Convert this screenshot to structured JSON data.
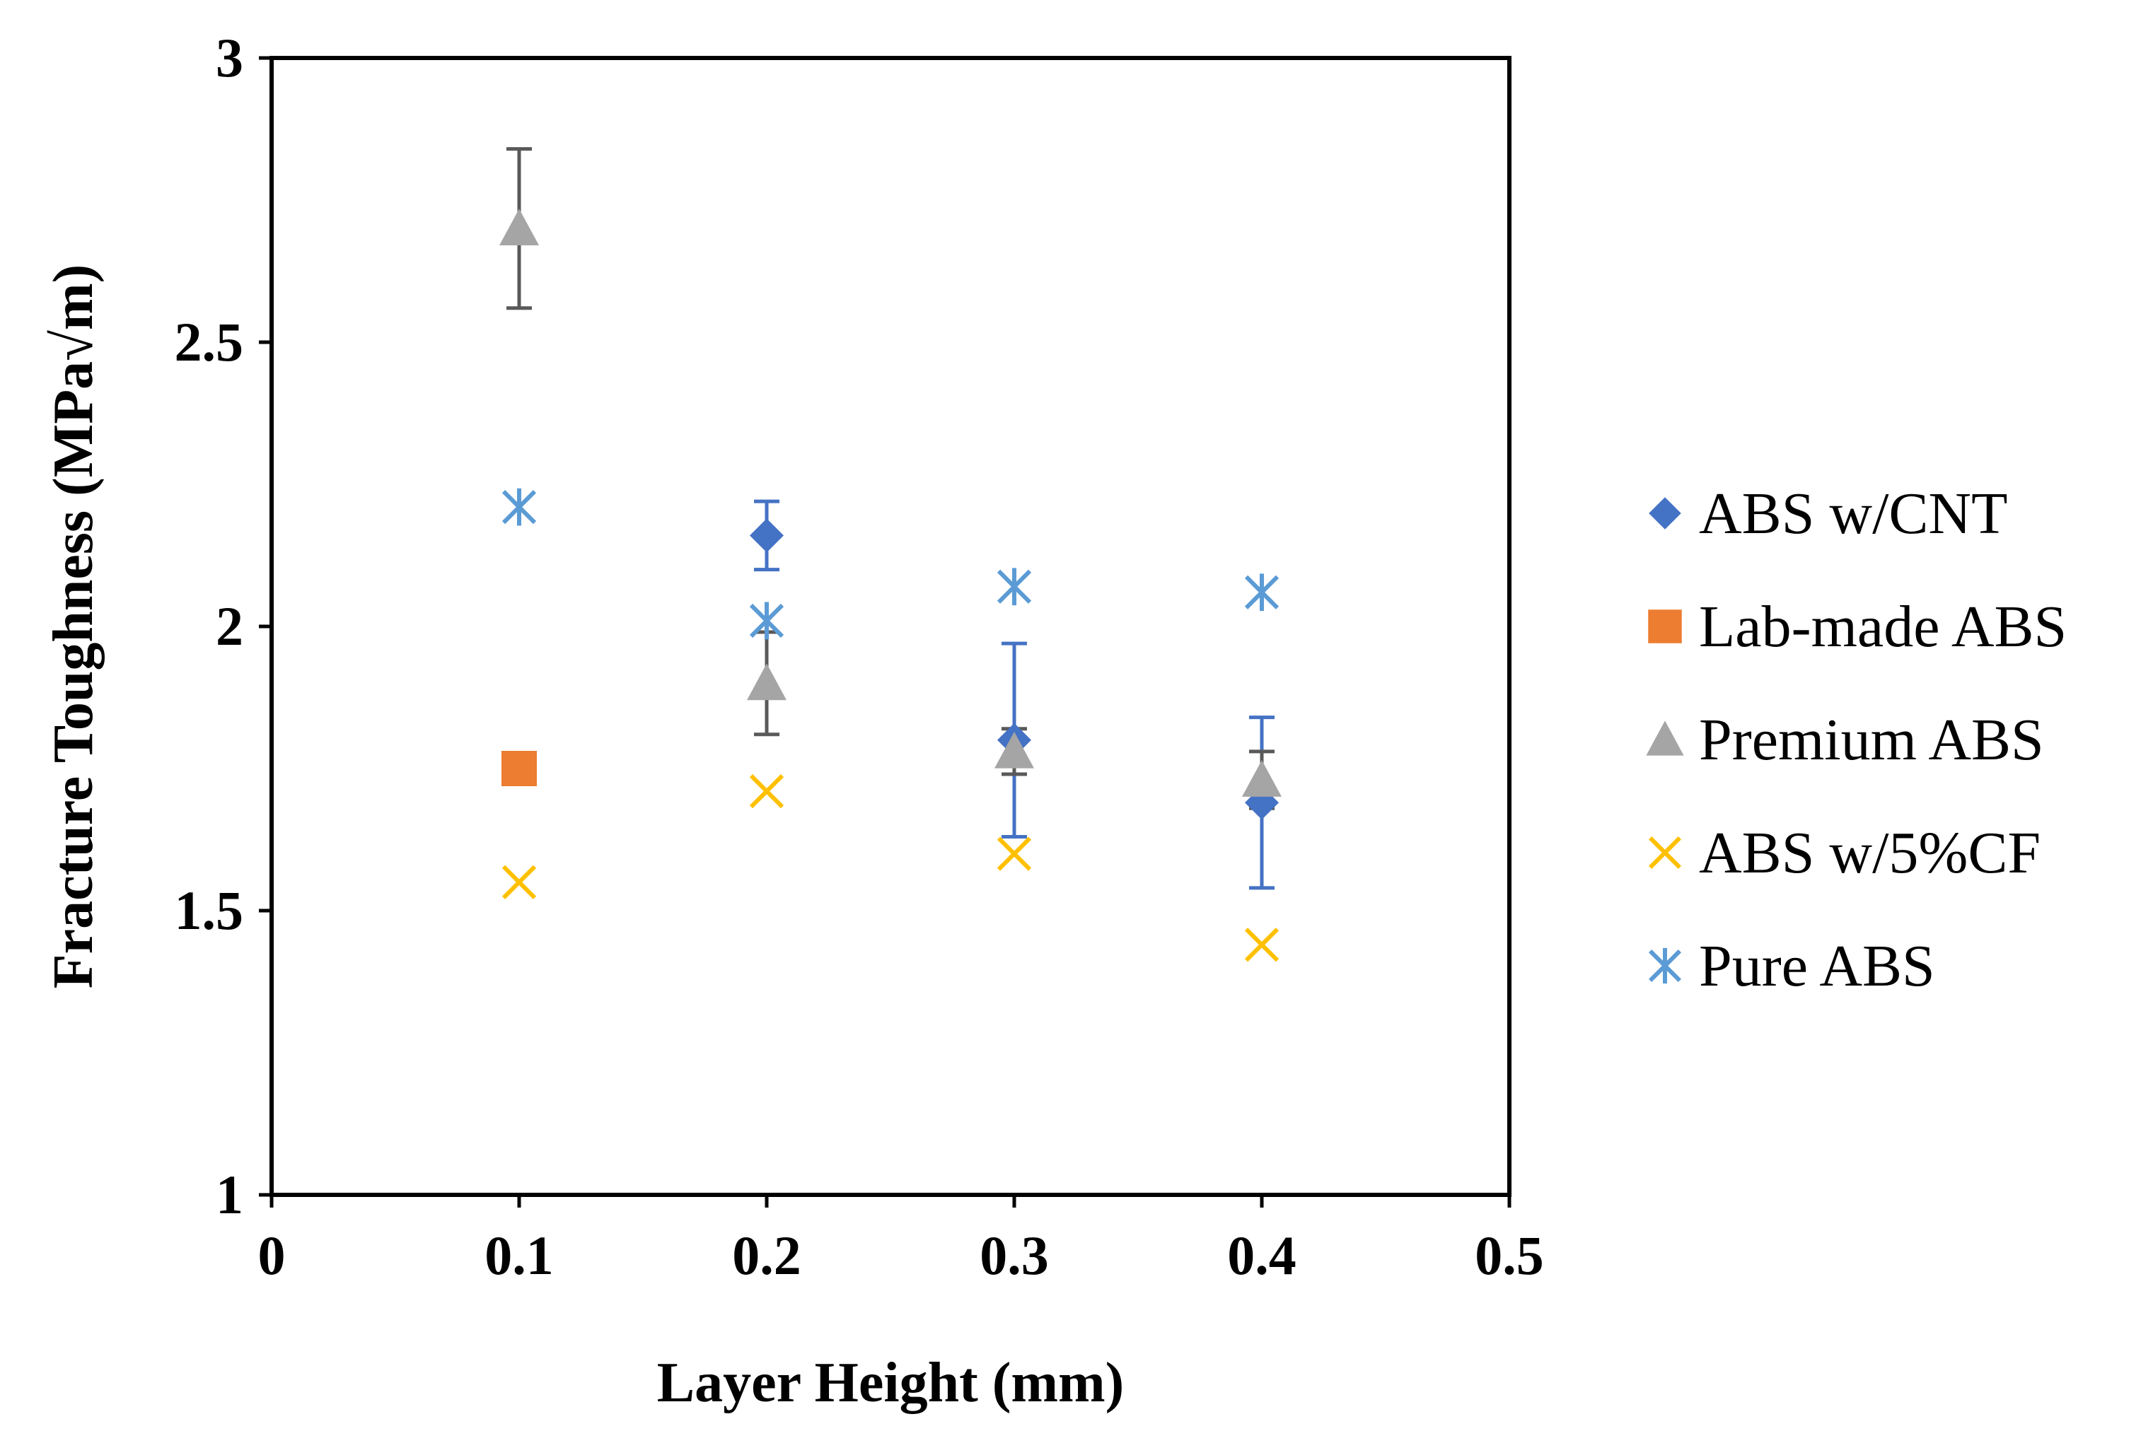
{
  "chart_data": {
    "type": "scatter",
    "title": "",
    "xlabel": "Layer Height (mm)",
    "ylabel": "Fracture Toughness (MPa√m)",
    "xlim": [
      0,
      0.5
    ],
    "ylim": [
      1,
      3
    ],
    "x_ticks": [
      0,
      0.1,
      0.2,
      0.3,
      0.4,
      0.5
    ],
    "x_tick_labels": [
      "0",
      "0.1",
      "0.2",
      "0.3",
      "0.4",
      "0.5"
    ],
    "y_ticks": [
      1,
      1.5,
      2,
      2.5,
      3
    ],
    "y_tick_labels": [
      "1",
      "1.5",
      "2",
      "2.5",
      "3"
    ],
    "grid": false,
    "legend_position": "right",
    "series": [
      {
        "name": "ABS w/CNT",
        "marker": "diamond",
        "color": "#4472C4",
        "error_color": "#4472C4",
        "points": [
          {
            "x": 0.2,
            "y": 2.16,
            "err_low": 2.1,
            "err_high": 2.22
          },
          {
            "x": 0.3,
            "y": 1.8,
            "err_low": 1.63,
            "err_high": 1.97
          },
          {
            "x": 0.4,
            "y": 1.69,
            "err_low": 1.54,
            "err_high": 1.84
          }
        ]
      },
      {
        "name": "Lab-made ABS",
        "marker": "square",
        "color": "#ED7D31",
        "points": [
          {
            "x": 0.1,
            "y": 1.75
          }
        ]
      },
      {
        "name": "Premium ABS",
        "marker": "triangle",
        "color": "#A5A5A5",
        "error_color": "#595959",
        "points": [
          {
            "x": 0.1,
            "y": 2.7,
            "err_low": 2.56,
            "err_high": 2.84
          },
          {
            "x": 0.2,
            "y": 1.9,
            "err_low": 1.81,
            "err_high": 1.99
          },
          {
            "x": 0.3,
            "y": 1.78,
            "err_low": 1.74,
            "err_high": 1.82
          },
          {
            "x": 0.4,
            "y": 1.73,
            "err_low": 1.68,
            "err_high": 1.78
          }
        ]
      },
      {
        "name": "ABS w/5%CF",
        "marker": "x",
        "color": "#FFC000",
        "points": [
          {
            "x": 0.1,
            "y": 1.55
          },
          {
            "x": 0.2,
            "y": 1.71
          },
          {
            "x": 0.3,
            "y": 1.6
          },
          {
            "x": 0.4,
            "y": 1.44
          }
        ]
      },
      {
        "name": "Pure ABS",
        "marker": "asterisk",
        "color": "#5B9BD5",
        "points": [
          {
            "x": 0.1,
            "y": 2.21
          },
          {
            "x": 0.2,
            "y": 2.01
          },
          {
            "x": 0.3,
            "y": 2.07
          },
          {
            "x": 0.4,
            "y": 2.06
          }
        ]
      }
    ]
  }
}
